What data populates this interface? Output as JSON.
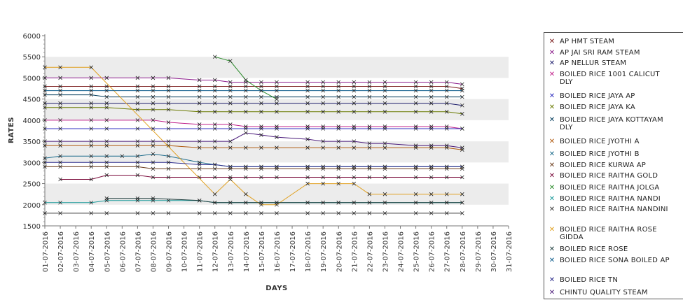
{
  "chart_data": {
    "type": "line",
    "title": "",
    "xlabel": "DAYS",
    "ylabel": "RATES",
    "ylim": [
      1500,
      6000
    ],
    "yticks": [
      1500,
      2000,
      2500,
      3000,
      3500,
      4000,
      4500,
      5000,
      5500,
      6000
    ],
    "grid": "horizontal alternating bands",
    "legend_position": "right",
    "categories": [
      "01-07-2016",
      "02-07-2016",
      "03-07-2016",
      "04-07-2016",
      "05-07-2016",
      "06-07-2016",
      "07-07-2016",
      "08-07-2016",
      "09-07-2016",
      "10-07-2016",
      "11-07-2016",
      "12-07-2016",
      "13-07-2016",
      "14-07-2016",
      "15-07-2016",
      "16-07-2016",
      "17-07-2016",
      "18-07-2016",
      "19-07-2016",
      "20-07-2016",
      "21-07-2016",
      "22-07-2016",
      "23-07-2016",
      "24-07-2016",
      "25-07-2016",
      "26-07-2016",
      "27-07-2016",
      "28-07-2016",
      "29-07-2016",
      "30-07-2016",
      "31-07-2016"
    ],
    "series": [
      {
        "name": "AP HMT STEAM",
        "color": "#7a1a1a",
        "values": [
          4800,
          4800,
          null,
          4800,
          4800,
          null,
          4800,
          4800,
          4800,
          null,
          4800,
          4800,
          4800,
          4800,
          4800,
          4800,
          null,
          4800,
          4800,
          4800,
          4800,
          4800,
          4800,
          null,
          4800,
          4800,
          4800,
          4750,
          null,
          null,
          null
        ]
      },
      {
        "name": "AP JAI SRI RAM STEAM",
        "color": "#8a1a8a",
        "values": [
          5000,
          5000,
          null,
          5000,
          5000,
          null,
          5000,
          5000,
          5000,
          null,
          4950,
          4950,
          4900,
          4900,
          4900,
          4900,
          null,
          4900,
          4900,
          4900,
          4900,
          4900,
          4900,
          null,
          4900,
          4900,
          4900,
          4850,
          null,
          null,
          null
        ]
      },
      {
        "name": "AP NELLUR STEAM",
        "color": "#1a1a6a",
        "values": [
          4400,
          4400,
          null,
          4400,
          4400,
          null,
          4400,
          4400,
          4400,
          null,
          4400,
          4400,
          4400,
          4400,
          4400,
          4400,
          null,
          4400,
          4400,
          4400,
          4400,
          4400,
          4400,
          null,
          4400,
          4400,
          4400,
          4350,
          null,
          null,
          null
        ]
      },
      {
        "name": "BOILED RICE 1001 CALICUT DLY",
        "color": "#c0208a",
        "values": [
          4000,
          4000,
          null,
          4000,
          4000,
          null,
          4000,
          4000,
          3950,
          null,
          3900,
          3900,
          3900,
          3850,
          3850,
          3850,
          null,
          3850,
          3850,
          3850,
          3850,
          3850,
          3850,
          null,
          3850,
          3850,
          3850,
          3800,
          null,
          null,
          null
        ]
      },
      {
        "name": "BOILED RICE JAYA AP",
        "color": "#3030c0",
        "values": [
          3800,
          3800,
          null,
          3800,
          3800,
          null,
          3800,
          3800,
          3800,
          null,
          3800,
          3800,
          3800,
          3800,
          3800,
          3800,
          null,
          3800,
          3800,
          3800,
          3800,
          3800,
          3800,
          null,
          3800,
          3800,
          3800,
          3800,
          null,
          null,
          null
        ]
      },
      {
        "name": "BOILED RICE JAYA KA",
        "color": "#6a7a00",
        "values": [
          4300,
          4300,
          null,
          4300,
          4300,
          null,
          4250,
          4250,
          4250,
          null,
          4200,
          4200,
          4200,
          4200,
          4200,
          4200,
          null,
          4200,
          4200,
          4200,
          4200,
          4200,
          4200,
          null,
          4200,
          4200,
          4200,
          4150,
          null,
          null,
          null
        ]
      },
      {
        "name": "BOILED RICE JAYA KOTTAYAM DLY",
        "color": "#003a5a",
        "values": [
          4600,
          4600,
          null,
          4600,
          4550,
          null,
          4550,
          4550,
          4550,
          null,
          4550,
          4550,
          4550,
          4550,
          4550,
          4550,
          null,
          4550,
          4550,
          4550,
          4550,
          4550,
          4550,
          null,
          4550,
          4550,
          4550,
          4550,
          null,
          null,
          null
        ]
      },
      {
        "name": "BOILED RICE JYOTHI A",
        "color": "#b05a10",
        "values": [
          3400,
          3400,
          null,
          3400,
          3400,
          null,
          3400,
          3400,
          3400,
          null,
          3350,
          3350,
          3350,
          3350,
          3350,
          3350,
          null,
          3350,
          3350,
          3350,
          3350,
          3350,
          3350,
          null,
          3350,
          3350,
          3350,
          3300,
          null,
          null,
          null
        ]
      },
      {
        "name": "BOILED RICE JYOTHI B",
        "color": "#1a6a8a",
        "values": [
          3100,
          3150,
          null,
          3150,
          3150,
          3150,
          3150,
          3200,
          3150,
          null,
          3000,
          2950,
          2900,
          2900,
          2900,
          2900,
          null,
          2900,
          2900,
          2900,
          2900,
          2900,
          2900,
          null,
          2900,
          2900,
          2900,
          2900,
          null,
          null,
          null
        ]
      },
      {
        "name": "BOILED RICE KURWA AP",
        "color": "#6a3a1a",
        "values": [
          2900,
          2900,
          null,
          2900,
          2900,
          null,
          2900,
          2850,
          2850,
          null,
          2850,
          2850,
          2850,
          2850,
          2850,
          2850,
          null,
          2850,
          2850,
          2850,
          2850,
          2850,
          2850,
          null,
          2850,
          2850,
          2850,
          2850,
          null,
          null,
          null
        ]
      },
      {
        "name": "BOILED RICE RAITHA GOLD",
        "color": "#7a0a3a",
        "values": [
          null,
          2600,
          null,
          2600,
          2700,
          null,
          2700,
          2650,
          2650,
          null,
          2650,
          2650,
          2650,
          2650,
          2650,
          2650,
          null,
          2650,
          2650,
          2650,
          2650,
          2650,
          2650,
          null,
          2650,
          2650,
          2650,
          2650,
          null,
          null,
          null
        ]
      },
      {
        "name": "BOILED RICE RAITHA JOLGA",
        "color": "#2a8a2a",
        "values": [
          null,
          null,
          null,
          null,
          null,
          null,
          null,
          null,
          null,
          null,
          null,
          5500,
          5400,
          4950,
          4700,
          4500,
          null,
          null,
          null,
          null,
          null,
          null,
          null,
          null,
          null,
          null,
          null,
          null,
          null,
          null,
          null
        ]
      },
      {
        "name": "BOILED RICE RAITHA NANDI",
        "color": "#1a9a9a",
        "values": [
          2050,
          2050,
          null,
          2050,
          2100,
          null,
          2100,
          2100,
          2100,
          null,
          2100,
          2050,
          2050,
          2050,
          2050,
          2050,
          null,
          2050,
          2050,
          2050,
          2050,
          2050,
          2050,
          null,
          2050,
          2050,
          2050,
          2050,
          null,
          null,
          null
        ]
      },
      {
        "name": "BOILED RICE RAITHA NANDINI",
        "color": "#3a3a3a",
        "values": [
          1800,
          1800,
          null,
          1800,
          1800,
          null,
          1800,
          1800,
          1800,
          null,
          1800,
          1800,
          1800,
          1800,
          1800,
          1800,
          null,
          1800,
          1800,
          1800,
          1800,
          1800,
          1800,
          null,
          1800,
          1800,
          1800,
          1800,
          null,
          null,
          null
        ]
      },
      {
        "name": "BOILED RICE RAITHA ROSE GIDDA",
        "color": "#e0a020",
        "values": [
          5250,
          5250,
          null,
          5250,
          null,
          null,
          null,
          null,
          null,
          null,
          null,
          2250,
          2600,
          2250,
          2000,
          2000,
          null,
          2500,
          2500,
          2500,
          2500,
          2250,
          2250,
          null,
          2250,
          2250,
          2250,
          2250,
          null,
          null,
          null
        ]
      },
      {
        "name": "BOILED RICE ROSE",
        "color": "#1a3a3a",
        "values": [
          null,
          null,
          null,
          null,
          2150,
          null,
          2150,
          2150,
          null,
          null,
          2100,
          2050,
          2050,
          2050,
          2050,
          2050,
          null,
          2050,
          2050,
          2050,
          2050,
          2050,
          2050,
          null,
          2050,
          2050,
          2050,
          2050,
          null,
          null,
          null
        ]
      },
      {
        "name": "BOILED RICE SONA BOILED AP",
        "color": "#0a5a8a",
        "values": [
          4700,
          4700,
          null,
          4700,
          4700,
          null,
          4700,
          4700,
          4700,
          null,
          4700,
          4700,
          4700,
          4700,
          4700,
          4700,
          null,
          4700,
          4700,
          4700,
          4700,
          4700,
          4700,
          null,
          4700,
          4700,
          4700,
          4700,
          null,
          null,
          null
        ]
      },
      {
        "name": "BOILED RICE TN",
        "color": "#2a2a8a",
        "values": [
          3000,
          3000,
          null,
          3000,
          3000,
          null,
          3000,
          3000,
          3000,
          null,
          2950,
          2950,
          2900,
          2900,
          2900,
          2900,
          null,
          2900,
          2900,
          2900,
          2900,
          2900,
          2900,
          null,
          2900,
          2900,
          2900,
          2900,
          null,
          null,
          null
        ]
      },
      {
        "name": "CHINTU QUALITY STEAM",
        "color": "#4a1a7a",
        "values": [
          3500,
          3500,
          null,
          3500,
          3500,
          null,
          3500,
          3500,
          3500,
          null,
          3500,
          3500,
          3500,
          3700,
          3650,
          3600,
          null,
          3550,
          3500,
          3500,
          3500,
          3450,
          3450,
          null,
          3400,
          3400,
          3400,
          3350,
          null,
          null,
          null
        ]
      }
    ]
  }
}
